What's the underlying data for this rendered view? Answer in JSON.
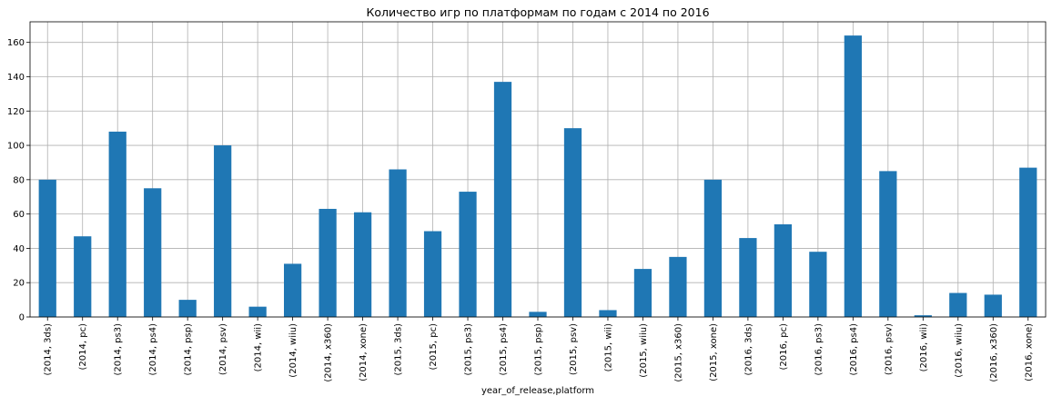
{
  "chart_data": {
    "type": "bar",
    "title": "Количество игр по платформам по годам с 2014 по 2016",
    "xlabel": "year_of_release,platform",
    "ylabel": "",
    "ylim": [
      0,
      172
    ],
    "yticks": [
      0,
      20,
      40,
      60,
      80,
      100,
      120,
      140,
      160
    ],
    "grid": true,
    "categories": [
      "(2014, 3ds)",
      "(2014, pc)",
      "(2014, ps3)",
      "(2014, ps4)",
      "(2014, psp)",
      "(2014, psv)",
      "(2014, wii)",
      "(2014, wiiu)",
      "(2014, x360)",
      "(2014, xone)",
      "(2015, 3ds)",
      "(2015, pc)",
      "(2015, ps3)",
      "(2015, ps4)",
      "(2015, psp)",
      "(2015, psv)",
      "(2015, wii)",
      "(2015, wiiu)",
      "(2015, x360)",
      "(2015, xone)",
      "(2016, 3ds)",
      "(2016, pc)",
      "(2016, ps3)",
      "(2016, ps4)",
      "(2016, psv)",
      "(2016, wii)",
      "(2016, wiiu)",
      "(2016, x360)",
      "(2016, xone)"
    ],
    "values": [
      80,
      47,
      108,
      75,
      10,
      100,
      6,
      31,
      63,
      61,
      86,
      50,
      73,
      137,
      3,
      110,
      4,
      28,
      35,
      80,
      46,
      54,
      38,
      164,
      85,
      1,
      14,
      13,
      87
    ],
    "colors": {
      "bar": "#1f77b4",
      "grid": "#b0b0b0",
      "axis": "#000000"
    }
  }
}
